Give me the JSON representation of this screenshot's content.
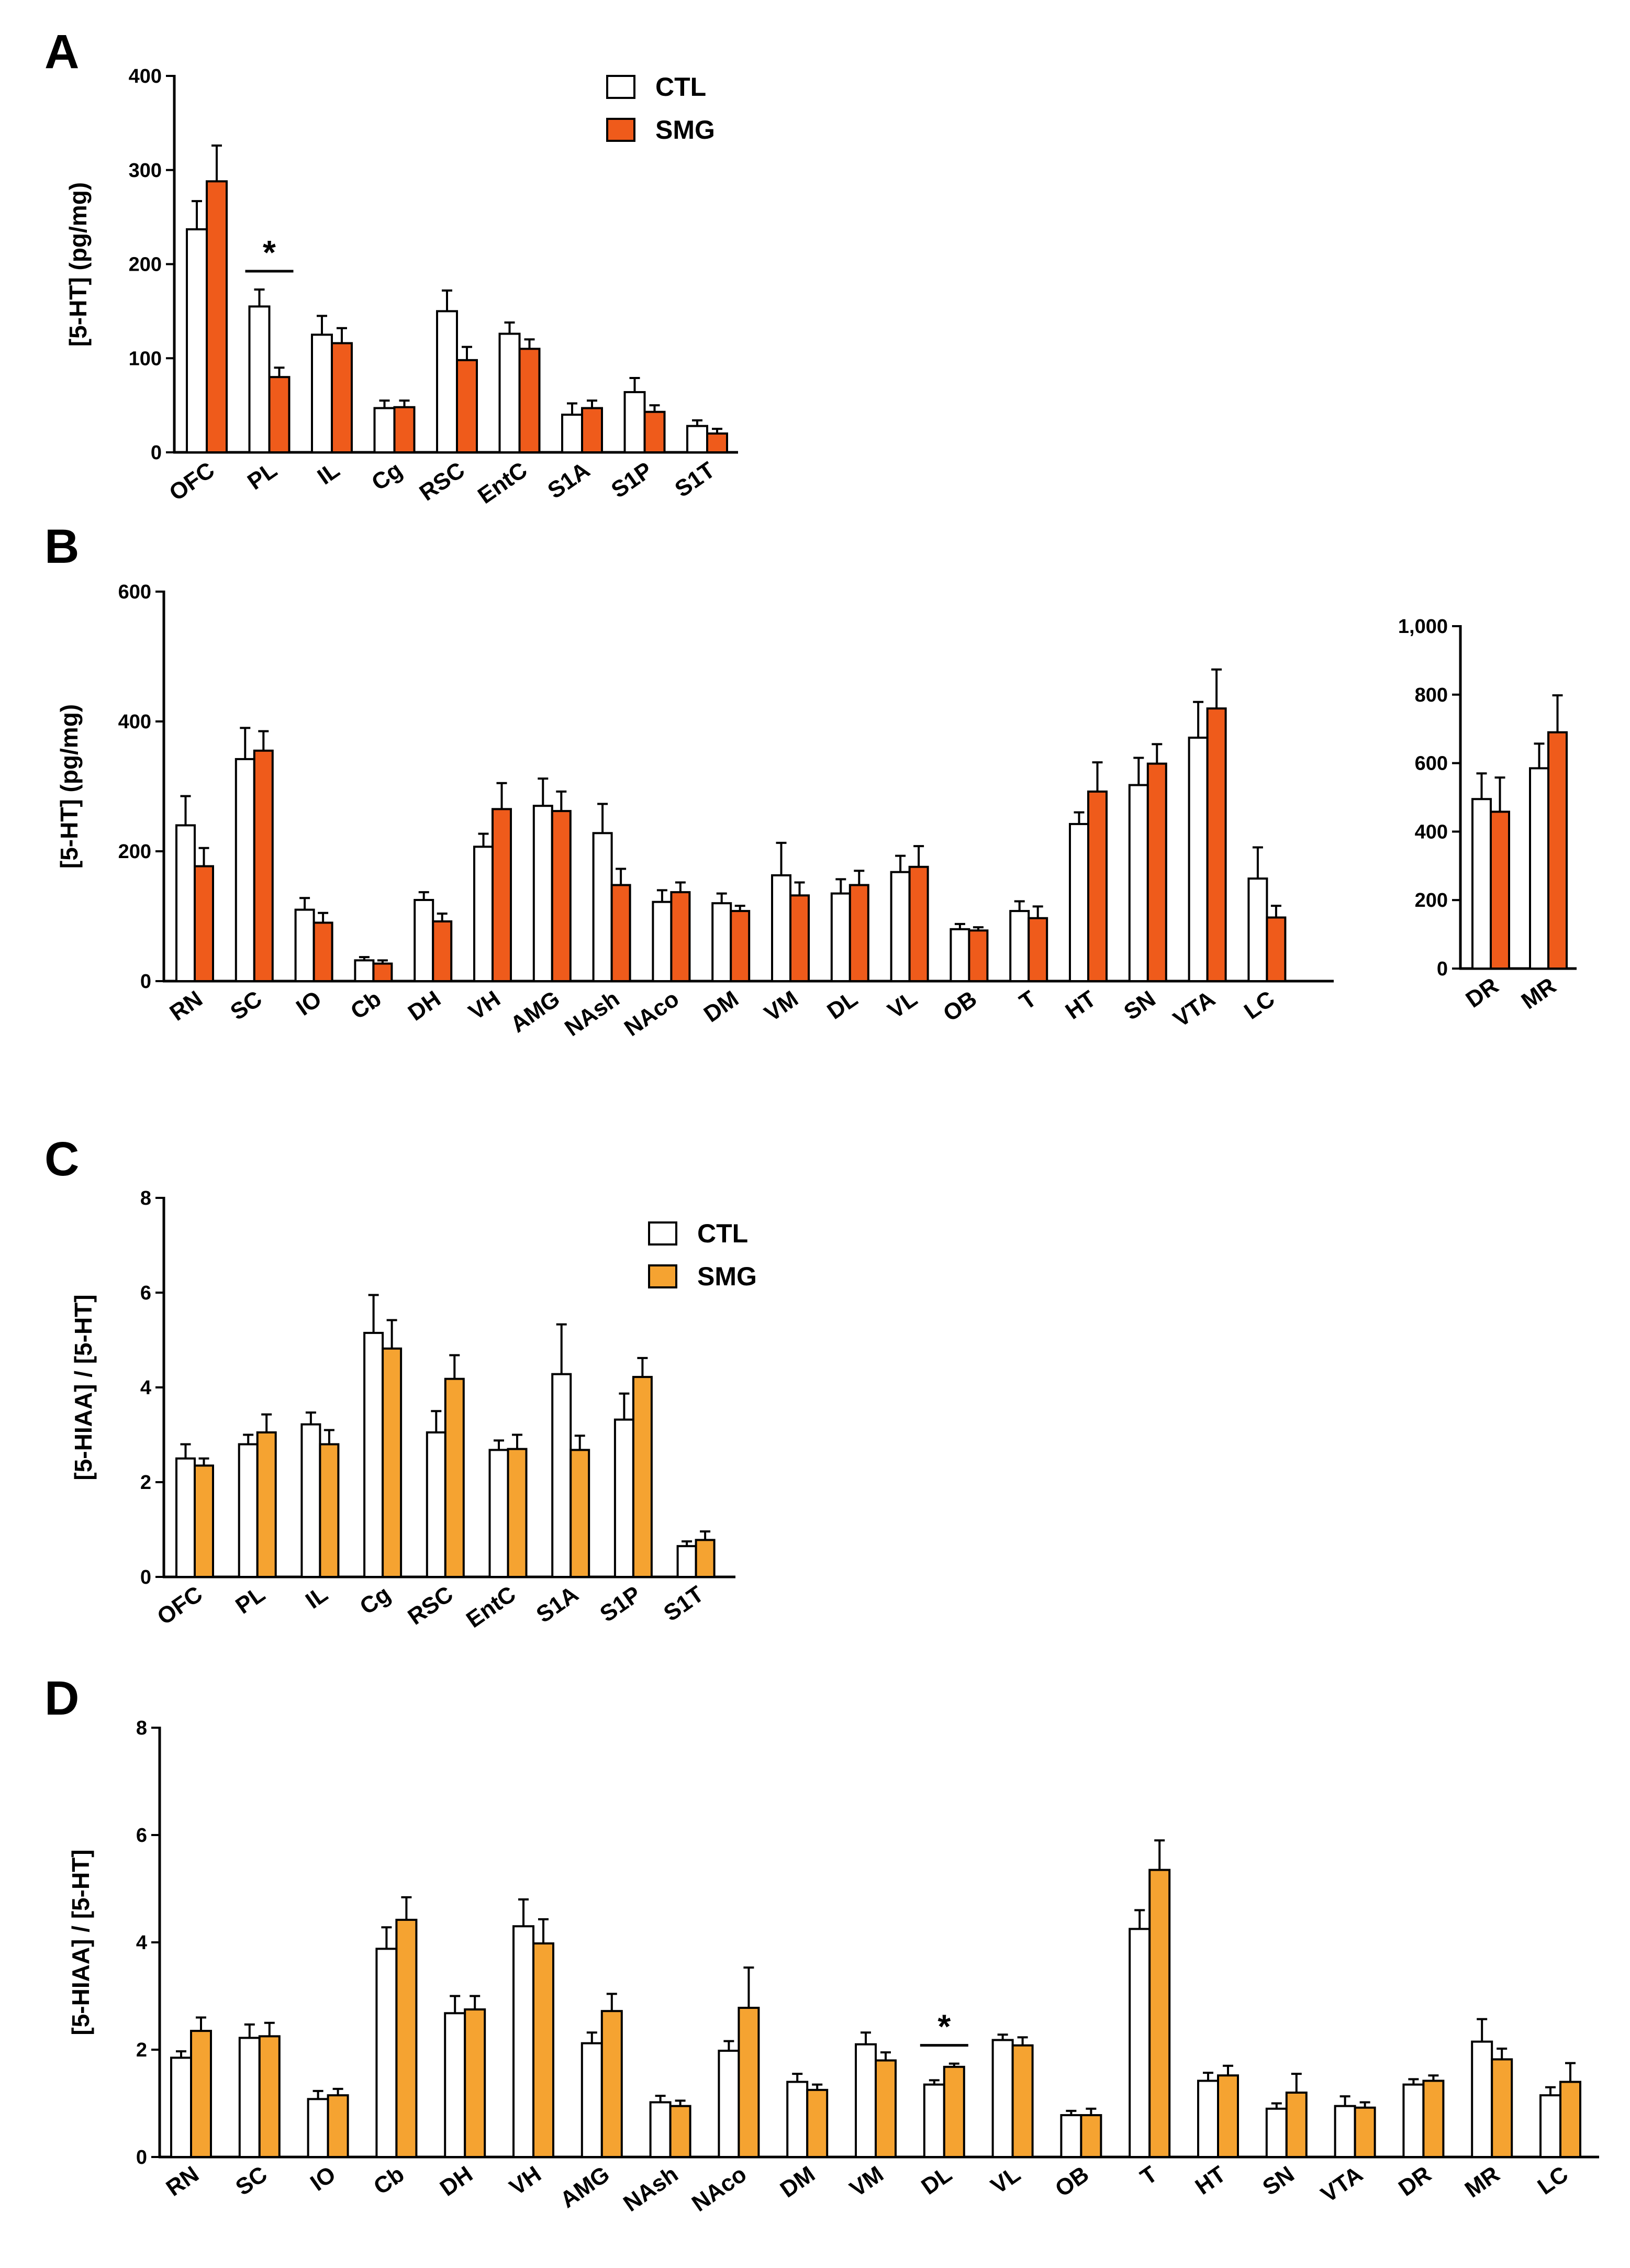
{
  "legend_labels": [
    "CTL",
    "SMG"
  ],
  "chart_data": [
    {
      "panel": "A",
      "type": "bar",
      "ylabel": "[5-HT] (pg/mg)",
      "ylim": [
        0,
        400
      ],
      "yticks": [
        "0",
        "100",
        "200",
        "300",
        "400"
      ],
      "yticks_values": [
        0,
        100,
        200,
        300,
        400
      ],
      "categories": [
        "OFC",
        "PL",
        "IL",
        "Cg",
        "RSC",
        "EntC",
        "S1A",
        "S1P",
        "S1T"
      ],
      "series": [
        {
          "name": "CTL",
          "color": "#ffffff",
          "values": [
            237,
            155,
            125,
            47,
            150,
            126,
            40,
            64,
            28
          ],
          "errors": [
            30,
            18,
            20,
            8,
            22,
            12,
            12,
            15,
            6
          ]
        },
        {
          "name": "SMG",
          "color": "#ef5b1b",
          "values": [
            288,
            80,
            116,
            48,
            98,
            110,
            47,
            43,
            20
          ],
          "errors": [
            38,
            10,
            16,
            7,
            14,
            10,
            8,
            7,
            5
          ]
        }
      ],
      "significance": [
        {
          "category": "PL",
          "label": "*"
        }
      ],
      "legend": "top-center"
    },
    {
      "panel": "B",
      "type": "bar",
      "ylabel": "[5-HT] (pg/mg)",
      "ylim": [
        0,
        600
      ],
      "yticks": [
        "0",
        "200",
        "400",
        "600"
      ],
      "yticks_values": [
        0,
        200,
        400,
        600
      ],
      "categories": [
        "RN",
        "SC",
        "IO",
        "Cb",
        "DH",
        "VH",
        "AMG",
        "NAsh",
        "NAco",
        "DM",
        "VM",
        "DL",
        "VL",
        "OB",
        "T",
        "HT",
        "SN",
        "VTA",
        "LC"
      ],
      "series": [
        {
          "name": "CTL",
          "color": "#ffffff",
          "values": [
            240,
            342,
            110,
            32,
            125,
            207,
            270,
            228,
            122,
            120,
            163,
            135,
            168,
            80,
            108,
            242,
            302,
            375,
            158
          ],
          "errors": [
            45,
            48,
            18,
            5,
            12,
            20,
            42,
            45,
            18,
            15,
            50,
            22,
            25,
            8,
            15,
            18,
            42,
            55,
            48
          ]
        },
        {
          "name": "SMG",
          "color": "#ef5b1b",
          "values": [
            177,
            355,
            90,
            27,
            92,
            265,
            262,
            148,
            137,
            108,
            132,
            148,
            176,
            78,
            97,
            292,
            335,
            420,
            98
          ],
          "errors": [
            28,
            30,
            15,
            5,
            12,
            40,
            30,
            25,
            15,
            8,
            20,
            22,
            32,
            5,
            18,
            45,
            30,
            60,
            18
          ]
        }
      ]
    },
    {
      "panel": "B-inset",
      "type": "bar",
      "ylim": [
        0,
        1000
      ],
      "yticks": [
        "0",
        "200",
        "400",
        "600",
        "800",
        "1,000"
      ],
      "yticks_values": [
        0,
        200,
        400,
        600,
        800,
        1000
      ],
      "categories": [
        "DR",
        "MR"
      ],
      "series": [
        {
          "name": "CTL",
          "color": "#ffffff",
          "values": [
            495,
            585
          ],
          "errors": [
            75,
            72
          ]
        },
        {
          "name": "SMG",
          "color": "#ef5b1b",
          "values": [
            458,
            690
          ],
          "errors": [
            100,
            108
          ]
        }
      ]
    },
    {
      "panel": "C",
      "type": "bar",
      "ylabel": "[5-HIAA] / [5-HT]",
      "ylim": [
        0,
        8
      ],
      "yticks": [
        "0",
        "2",
        "4",
        "6",
        "8"
      ],
      "yticks_values": [
        0,
        2,
        4,
        6,
        8
      ],
      "categories": [
        "OFC",
        "PL",
        "IL",
        "Cg",
        "RSC",
        "EntC",
        "S1A",
        "S1P",
        "S1T"
      ],
      "series": [
        {
          "name": "CTL",
          "color": "#ffffff",
          "values": [
            2.5,
            2.8,
            3.22,
            5.15,
            3.05,
            2.68,
            4.28,
            3.32,
            0.65
          ],
          "errors": [
            0.3,
            0.2,
            0.25,
            0.8,
            0.45,
            0.2,
            1.05,
            0.55,
            0.1
          ]
        },
        {
          "name": "SMG",
          "color": "#f5a331",
          "values": [
            2.35,
            3.05,
            2.8,
            4.82,
            4.18,
            2.7,
            2.68,
            4.22,
            0.78
          ],
          "errors": [
            0.15,
            0.38,
            0.3,
            0.6,
            0.5,
            0.3,
            0.3,
            0.4,
            0.18
          ]
        }
      ],
      "legend": "top-center"
    },
    {
      "panel": "D",
      "type": "bar",
      "ylabel": "[5-HIAA] / [5-HT]",
      "ylim": [
        0,
        8
      ],
      "yticks": [
        "0",
        "2",
        "4",
        "6",
        "8"
      ],
      "yticks_values": [
        0,
        2,
        4,
        6,
        8
      ],
      "categories": [
        "RN",
        "SC",
        "IO",
        "Cb",
        "DH",
        "VH",
        "AMG",
        "NAsh",
        "NAco",
        "DM",
        "VM",
        "DL",
        "VL",
        "OB",
        "T",
        "HT",
        "SN",
        "VTA",
        "DR",
        "MR",
        "LC"
      ],
      "series": [
        {
          "name": "CTL",
          "color": "#ffffff",
          "values": [
            1.85,
            2.22,
            1.08,
            3.88,
            2.68,
            4.3,
            2.12,
            1.02,
            1.98,
            1.4,
            2.1,
            1.35,
            2.18,
            0.78,
            4.25,
            1.42,
            0.9,
            0.95,
            1.35,
            2.15,
            1.15
          ],
          "errors": [
            0.12,
            0.25,
            0.15,
            0.4,
            0.32,
            0.5,
            0.2,
            0.12,
            0.18,
            0.15,
            0.22,
            0.08,
            0.1,
            0.08,
            0.35,
            0.15,
            0.1,
            0.18,
            0.1,
            0.42,
            0.15
          ]
        },
        {
          "name": "SMG",
          "color": "#f5a331",
          "values": [
            2.35,
            2.25,
            1.15,
            4.42,
            2.75,
            3.98,
            2.72,
            0.95,
            2.78,
            1.25,
            1.8,
            1.68,
            2.08,
            0.78,
            5.35,
            1.52,
            1.2,
            0.92,
            1.42,
            1.82,
            1.4
          ],
          "errors": [
            0.25,
            0.25,
            0.12,
            0.42,
            0.25,
            0.45,
            0.32,
            0.1,
            0.75,
            0.1,
            0.15,
            0.06,
            0.15,
            0.12,
            0.55,
            0.18,
            0.35,
            0.1,
            0.1,
            0.2,
            0.35
          ]
        }
      ],
      "significance": [
        {
          "category": "DL",
          "label": "*"
        }
      ]
    }
  ]
}
